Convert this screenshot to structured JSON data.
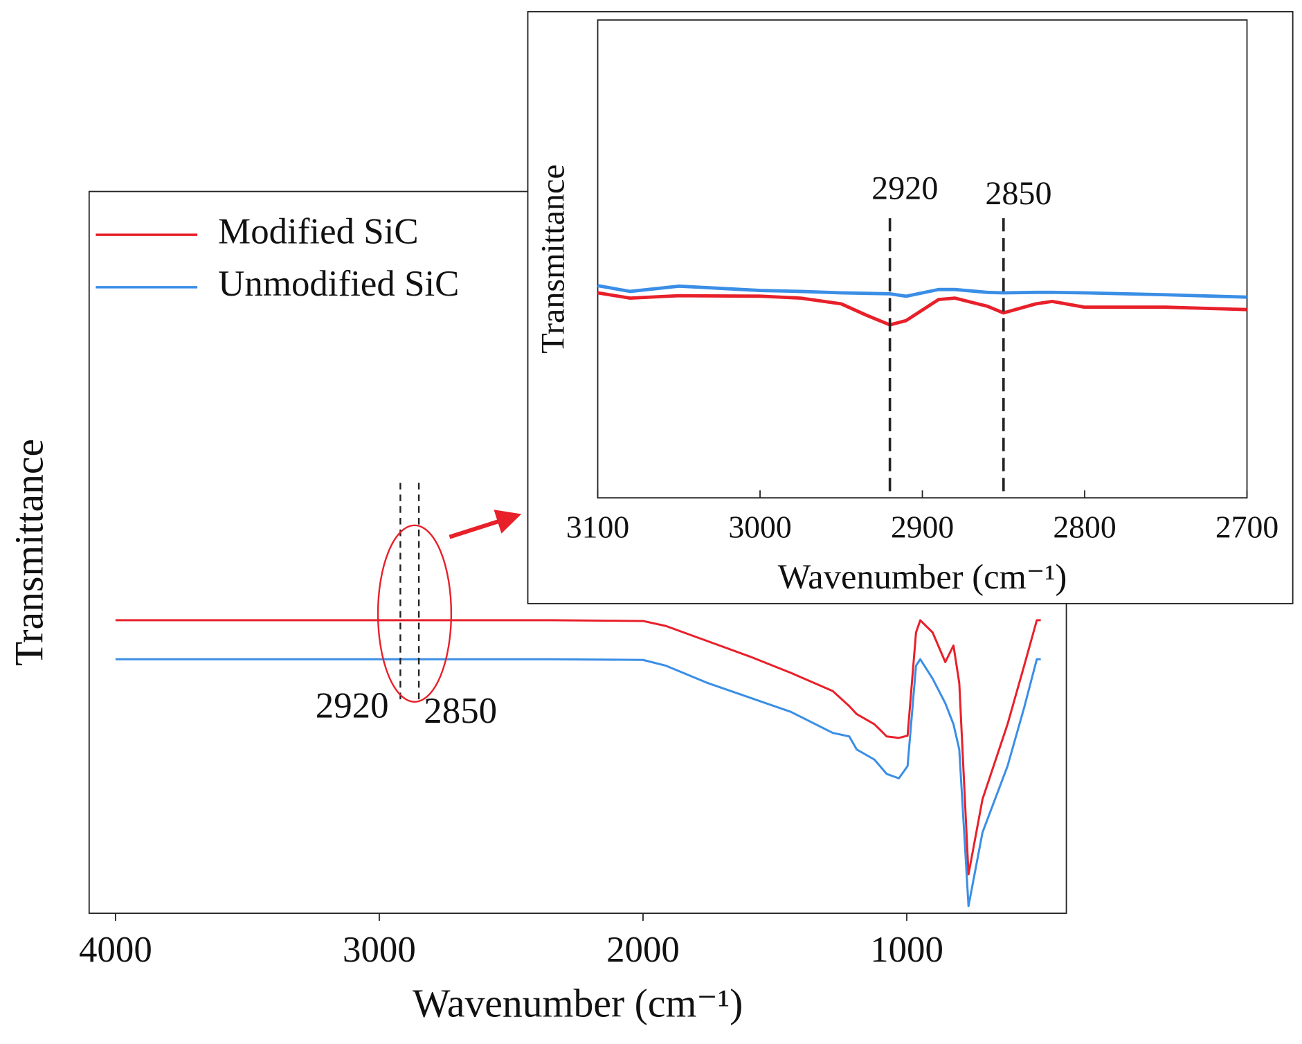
{
  "chart_data": [
    {
      "type": "line",
      "xlabel": "Wavenumber (cm⁻¹)",
      "ylabel": "Transmittance",
      "x": [
        4000,
        2350,
        2000,
        1913,
        1755,
        1597,
        1439,
        1281,
        1218,
        1190,
        1123,
        1076,
        1030,
        997,
        965,
        949,
        902,
        854,
        823,
        801,
        766,
        713,
        618,
        555,
        507,
        492
      ],
      "series": [
        {
          "name": "Modified SiC",
          "color": "#e8202a",
          "values": [
            40.6,
            40.6,
            40.5,
            39.8,
            37.7,
            35.6,
            33.3,
            30.8,
            28.7,
            27.6,
            26.2,
            24.5,
            24.3,
            24.6,
            38.9,
            40.6,
            38.9,
            34.8,
            37.1,
            31.9,
            5.4,
            15.8,
            26.2,
            34.3,
            40.6,
            40.6
          ]
        },
        {
          "name": "Unmodified SiC",
          "color": "#3a8ee6",
          "values": [
            35.2,
            35.2,
            35.1,
            34.3,
            31.9,
            29.9,
            27.9,
            25.0,
            24.5,
            22.7,
            21.3,
            19.3,
            18.7,
            20.4,
            34.3,
            35.2,
            32.5,
            29.1,
            26.2,
            22.7,
            1.0,
            11.2,
            20.4,
            28.5,
            35.2,
            35.2
          ]
        }
      ],
      "xlim": [
        4100,
        395
      ],
      "xticks": [
        4000,
        3000,
        2000,
        1000
      ],
      "ylim": [
        0,
        100
      ],
      "vlines": [
        2920,
        2850
      ],
      "legend": "upper left"
    },
    {
      "type": "line",
      "xlabel": "Wavenumber (cm⁻¹)",
      "ylabel": "Transmittance",
      "x": [
        3100,
        3080,
        3050,
        3000,
        2975,
        2950,
        2935,
        2920,
        2910,
        2890,
        2880,
        2860,
        2850,
        2830,
        2820,
        2800,
        2750,
        2700
      ],
      "series": [
        {
          "name": "Modified SiC",
          "color": "#e8202a",
          "values": [
            42.9,
            41.8,
            42.3,
            42.2,
            41.8,
            40.6,
            38.3,
            36.2,
            37.1,
            41.5,
            41.8,
            40.1,
            38.7,
            40.6,
            41.1,
            39.9,
            39.9,
            39.4
          ]
        },
        {
          "name": "Unmodified SiC",
          "color": "#3a8ee6",
          "values": [
            44.4,
            43.2,
            44.3,
            43.4,
            43.2,
            42.9,
            42.8,
            42.7,
            42.2,
            43.6,
            43.6,
            43.0,
            42.9,
            43.0,
            43.0,
            42.9,
            42.5,
            42.0
          ]
        }
      ],
      "xlim": [
        3100,
        2700
      ],
      "xticks": [
        3100,
        3000,
        2900,
        2800,
        2700
      ],
      "ylim": [
        0,
        100
      ],
      "vlines": [
        2920,
        2850
      ]
    }
  ]
}
